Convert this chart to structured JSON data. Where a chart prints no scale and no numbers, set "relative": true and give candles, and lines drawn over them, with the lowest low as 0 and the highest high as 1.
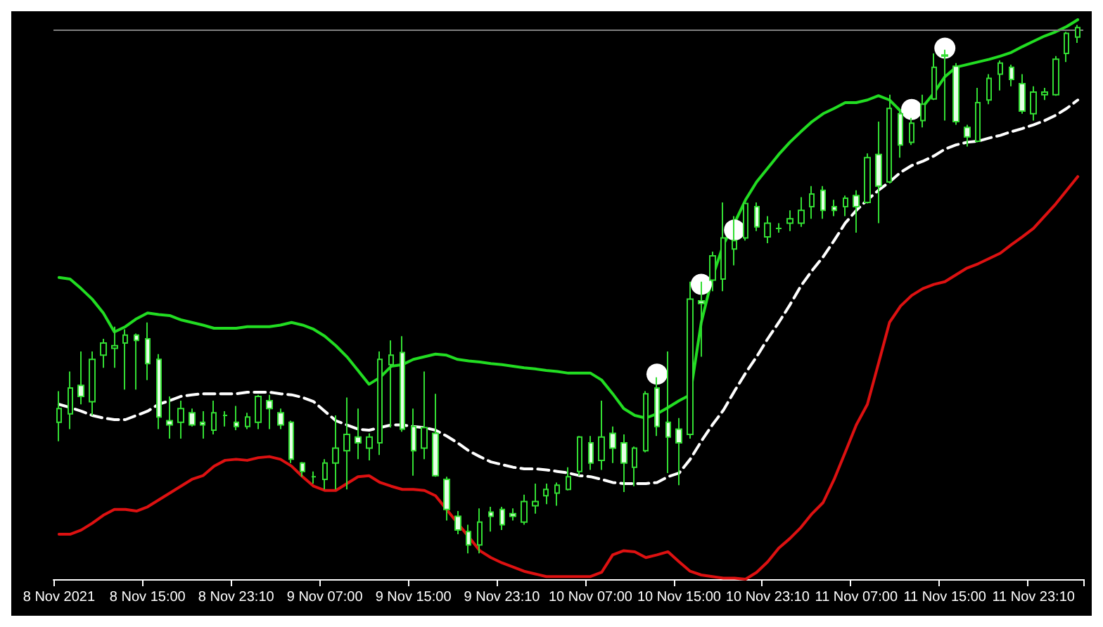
{
  "chart_data": {
    "type": "candlestick",
    "relative": true,
    "color": "#33dd33",
    "categories": [
      "8 Nov 2021",
      null,
      null,
      null,
      null,
      null,
      null,
      null,
      "8 Nov 15:00",
      null,
      null,
      null,
      null,
      null,
      null,
      null,
      "8 Nov 23:10",
      null,
      null,
      null,
      null,
      null,
      null,
      null,
      "9 Nov 07:00",
      null,
      null,
      null,
      null,
      null,
      null,
      null,
      "9 Nov 15:00",
      null,
      null,
      null,
      null,
      null,
      null,
      null,
      "9 Nov 23:10",
      null,
      null,
      null,
      null,
      null,
      null,
      null,
      "10 Nov 07:00",
      null,
      null,
      null,
      null,
      null,
      null,
      null,
      "10 Nov 15:00",
      null,
      null,
      null,
      null,
      null,
      null,
      null,
      "10 Nov 23:10",
      null,
      null,
      null,
      null,
      null,
      null,
      null,
      "11 Nov 07:00",
      null,
      null,
      null,
      null,
      null,
      null,
      null,
      "11 Nov 15:00",
      null,
      null,
      null,
      null,
      null,
      null,
      null,
      "11 Nov 23:10",
      null,
      null,
      null,
      null
    ],
    "ohlc": [
      [
        0.248,
        0.307,
        0.212,
        0.274
      ],
      [
        0.264,
        0.344,
        0.235,
        0.313
      ],
      [
        0.318,
        0.382,
        0.282,
        0.297
      ],
      [
        0.287,
        0.382,
        0.261,
        0.367
      ],
      [
        0.375,
        0.406,
        0.351,
        0.398
      ],
      [
        0.388,
        0.429,
        0.351,
        0.393
      ],
      [
        0.398,
        0.424,
        0.31,
        0.413
      ],
      [
        0.413,
        0.416,
        0.31,
        0.403
      ],
      [
        0.406,
        0.437,
        0.328,
        0.359
      ],
      [
        0.367,
        0.377,
        0.235,
        0.258
      ],
      [
        0.251,
        0.297,
        0.217,
        0.243
      ],
      [
        0.248,
        0.289,
        0.217,
        0.274
      ],
      [
        0.266,
        0.274,
        0.24,
        0.243
      ],
      [
        0.248,
        0.269,
        0.217,
        0.243
      ],
      [
        0.233,
        0.289,
        0.225,
        0.266
      ],
      [
        0.261,
        0.269,
        0.24,
        0.261
      ],
      [
        0.248,
        0.279,
        0.233,
        0.24
      ],
      [
        0.24,
        0.266,
        0.235,
        0.258
      ],
      [
        0.248,
        0.3,
        0.235,
        0.297
      ],
      [
        0.289,
        0.3,
        0.235,
        0.274
      ],
      [
        0.266,
        0.274,
        0.235,
        0.243
      ],
      [
        0.248,
        0.251,
        0.171,
        0.178
      ],
      [
        0.171,
        0.173,
        0.145,
        0.155
      ],
      [
        0.145,
        0.155,
        0.132,
        0.145
      ],
      [
        0.14,
        0.178,
        0.121,
        0.171
      ],
      [
        0.171,
        0.261,
        0.121,
        0.199
      ],
      [
        0.194,
        0.295,
        0.121,
        0.225
      ],
      [
        0.22,
        0.274,
        0.178,
        0.209
      ],
      [
        0.199,
        0.227,
        0.176,
        0.22
      ],
      [
        0.209,
        0.382,
        0.186,
        0.367
      ],
      [
        0.357,
        0.403,
        0.238,
        0.375
      ],
      [
        0.38,
        0.411,
        0.23,
        0.235
      ],
      [
        0.24,
        0.274,
        0.147,
        0.194
      ],
      [
        0.199,
        0.344,
        0.178,
        0.238
      ],
      [
        0.227,
        0.302,
        0.145,
        0.147
      ],
      [
        0.14,
        0.145,
        0.062,
        0.083
      ],
      [
        0.07,
        0.08,
        0.036,
        0.044
      ],
      [
        0.041,
        0.054,
        0,
        0.016
      ],
      [
        0.016,
        0.085,
        0,
        0.059
      ],
      [
        0.078,
        0.088,
        0.041,
        0.07
      ],
      [
        0.083,
        0.088,
        0.044,
        0.054
      ],
      [
        0.075,
        0.085,
        0.062,
        0.07
      ],
      [
        0.059,
        0.111,
        0.054,
        0.098
      ],
      [
        0.09,
        0.132,
        0.075,
        0.098
      ],
      [
        0.109,
        0.132,
        0.093,
        0.121
      ],
      [
        0.114,
        0.134,
        0.09,
        0.129
      ],
      [
        0.121,
        0.163,
        0.119,
        0.145
      ],
      [
        0.155,
        0.222,
        0.147,
        0.22
      ],
      [
        0.209,
        0.222,
        0.158,
        0.171
      ],
      [
        0.176,
        0.289,
        0.158,
        0.22
      ],
      [
        0.227,
        0.24,
        0.171,
        0.199
      ],
      [
        0.209,
        0.225,
        0.116,
        0.171
      ],
      [
        0.163,
        0.202,
        0.127,
        0.199
      ],
      [
        0.194,
        0.307,
        0.191,
        0.302
      ],
      [
        0.313,
        0.333,
        0.222,
        0.24
      ],
      [
        0.248,
        0.382,
        0.152,
        0.22
      ],
      [
        0.235,
        0.256,
        0.129,
        0.209
      ],
      [
        0.225,
        0.514,
        0.217,
        0.481
      ],
      [
        0.478,
        0.514,
        0.372,
        0.473
      ],
      [
        0.517,
        0.571,
        0.496,
        0.563
      ],
      [
        0.519,
        0.664,
        0.496,
        0.597
      ],
      [
        0.576,
        0.638,
        0.545,
        0.592
      ],
      [
        0.597,
        0.664,
        0.592,
        0.662
      ],
      [
        0.656,
        0.664,
        0.61,
        0.618
      ],
      [
        0.599,
        0.638,
        0.587,
        0.625
      ],
      [
        0.615,
        0.625,
        0.607,
        0.615
      ],
      [
        0.625,
        0.649,
        0.61,
        0.633
      ],
      [
        0.625,
        0.674,
        0.618,
        0.649
      ],
      [
        0.656,
        0.695,
        0.633,
        0.68
      ],
      [
        0.687,
        0.695,
        0.633,
        0.649
      ],
      [
        0.656,
        0.669,
        0.638,
        0.649
      ],
      [
        0.656,
        0.677,
        0.638,
        0.672
      ],
      [
        0.677,
        0.687,
        0.607,
        0.656
      ],
      [
        0.664,
        0.757,
        0.662,
        0.749
      ],
      [
        0.755,
        0.817,
        0.625,
        0.695
      ],
      [
        0.703,
        0.868,
        0.7,
        0.842
      ],
      [
        0.832,
        0.837,
        0.749,
        0.773
      ],
      [
        0.778,
        0.824,
        0.773,
        0.814
      ],
      [
        0.819,
        0.868,
        0.806,
        0.85
      ],
      [
        0.86,
        0.946,
        0.858,
        0.92
      ],
      [
        0.943,
        0.953,
        0.819,
        0.941
      ],
      [
        0.922,
        0.928,
        0.811,
        0.817
      ],
      [
        0.806,
        0.811,
        0.77,
        0.788
      ],
      [
        0.78,
        0.881,
        0.778,
        0.853
      ],
      [
        0.858,
        0.907,
        0.85,
        0.899
      ],
      [
        0.907,
        0.933,
        0.876,
        0.928
      ],
      [
        0.92,
        0.925,
        0.884,
        0.897
      ],
      [
        0.889,
        0.907,
        0.832,
        0.837
      ],
      [
        0.832,
        0.884,
        0.819,
        0.873
      ],
      [
        0.868,
        0.881,
        0.858,
        0.873
      ],
      [
        0.868,
        0.941,
        0.866,
        0.935
      ],
      [
        0.946,
        0.987,
        0.93,
        0.984
      ],
      [
        0.977,
        1,
        0.966,
        0.995
      ]
    ],
    "series": [
      {
        "type": "line",
        "color": "#22dd22",
        "line_style": "solid",
        "values": [
          0.522,
          0.519,
          0.501,
          0.481,
          0.455,
          0.419,
          0.429,
          0.444,
          0.455,
          0.452,
          0.45,
          0.442,
          0.437,
          0.432,
          0.426,
          0.426,
          0.426,
          0.429,
          0.429,
          0.429,
          0.432,
          0.437,
          0.432,
          0.424,
          0.411,
          0.393,
          0.372,
          0.346,
          0.32,
          0.333,
          0.354,
          0.357,
          0.367,
          0.372,
          0.377,
          0.375,
          0.367,
          0.364,
          0.362,
          0.359,
          0.357,
          0.354,
          0.351,
          0.349,
          0.346,
          0.344,
          0.341,
          0.341,
          0.341,
          0.328,
          0.302,
          0.274,
          0.261,
          0.256,
          0.264,
          0.276,
          0.289,
          0.3,
          0.437,
          0.522,
          0.584,
          0.625,
          0.669,
          0.703,
          0.729,
          0.755,
          0.778,
          0.798,
          0.817,
          0.832,
          0.842,
          0.853,
          0.853,
          0.858,
          0.866,
          0.858,
          0.837,
          0.832,
          0.845,
          0.871,
          0.902,
          0.92,
          0.925,
          0.93,
          0.935,
          0.941,
          0.948,
          0.959,
          0.969,
          0.979,
          0.987,
          0.997,
          1.01
        ]
      },
      {
        "type": "line",
        "color": "#ffffff",
        "line_style": "dashed",
        "values": [
          0.282,
          0.276,
          0.269,
          0.261,
          0.256,
          0.253,
          0.253,
          0.261,
          0.269,
          0.282,
          0.289,
          0.297,
          0.3,
          0.302,
          0.302,
          0.302,
          0.302,
          0.305,
          0.305,
          0.305,
          0.302,
          0.3,
          0.295,
          0.287,
          0.269,
          0.251,
          0.243,
          0.235,
          0.233,
          0.238,
          0.243,
          0.243,
          0.24,
          0.238,
          0.233,
          0.222,
          0.209,
          0.194,
          0.183,
          0.173,
          0.168,
          0.163,
          0.16,
          0.16,
          0.158,
          0.155,
          0.152,
          0.147,
          0.145,
          0.14,
          0.134,
          0.132,
          0.132,
          0.132,
          0.134,
          0.145,
          0.152,
          0.178,
          0.212,
          0.243,
          0.271,
          0.307,
          0.341,
          0.372,
          0.406,
          0.437,
          0.47,
          0.506,
          0.535,
          0.561,
          0.592,
          0.625,
          0.649,
          0.669,
          0.687,
          0.703,
          0.721,
          0.734,
          0.742,
          0.752,
          0.765,
          0.773,
          0.778,
          0.78,
          0.786,
          0.791,
          0.798,
          0.804,
          0.811,
          0.819,
          0.829,
          0.842,
          0.858
        ]
      },
      {
        "type": "line",
        "color": "#dd1111",
        "line_style": "solid",
        "values": [
          0.036,
          0.036,
          0.044,
          0.057,
          0.072,
          0.083,
          0.083,
          0.08,
          0.088,
          0.101,
          0.114,
          0.127,
          0.14,
          0.147,
          0.165,
          0.176,
          0.178,
          0.176,
          0.181,
          0.183,
          0.178,
          0.165,
          0.145,
          0.127,
          0.119,
          0.119,
          0.132,
          0.145,
          0.147,
          0.134,
          0.127,
          0.121,
          0.121,
          0.119,
          0.109,
          0.083,
          0.057,
          0.031,
          0.005,
          -0.008,
          -0.018,
          -0.026,
          -0.034,
          -0.039,
          -0.044,
          -0.044,
          -0.044,
          -0.044,
          -0.044,
          -0.036,
          -0.003,
          0.005,
          0.003,
          -0.008,
          -0.003,
          0.003,
          -0.016,
          -0.034,
          -0.041,
          -0.044,
          -0.047,
          -0.047,
          -0.049,
          -0.036,
          -0.016,
          0.01,
          0.028,
          0.049,
          0.075,
          0.096,
          0.14,
          0.191,
          0.243,
          0.282,
          0.359,
          0.437,
          0.468,
          0.488,
          0.501,
          0.509,
          0.514,
          0.527,
          0.54,
          0.548,
          0.558,
          0.568,
          0.584,
          0.599,
          0.615,
          0.638,
          0.661,
          0.687,
          0.713
        ]
      },
      {
        "type": "scatter",
        "color": "#ffffff",
        "marker": "circle",
        "values": [
          null,
          null,
          null,
          null,
          null,
          null,
          null,
          null,
          null,
          null,
          null,
          null,
          null,
          null,
          null,
          null,
          null,
          null,
          null,
          null,
          null,
          null,
          null,
          null,
          null,
          null,
          null,
          null,
          null,
          null,
          null,
          null,
          null,
          null,
          null,
          null,
          null,
          null,
          null,
          null,
          null,
          null,
          null,
          null,
          null,
          null,
          null,
          null,
          null,
          null,
          null,
          null,
          null,
          null,
          0.339,
          null,
          null,
          null,
          0.509,
          null,
          null,
          0.612,
          null,
          null,
          null,
          null,
          null,
          null,
          null,
          null,
          null,
          null,
          null,
          null,
          null,
          null,
          null,
          0.84,
          null,
          null,
          0.956,
          null,
          null,
          null,
          null,
          null,
          null,
          null,
          null,
          null,
          null,
          null,
          null
        ]
      }
    ],
    "ref_lines": [
      {
        "axis": "y",
        "value": 0.992,
        "color": "#808080",
        "line_style": "solid"
      }
    ]
  }
}
